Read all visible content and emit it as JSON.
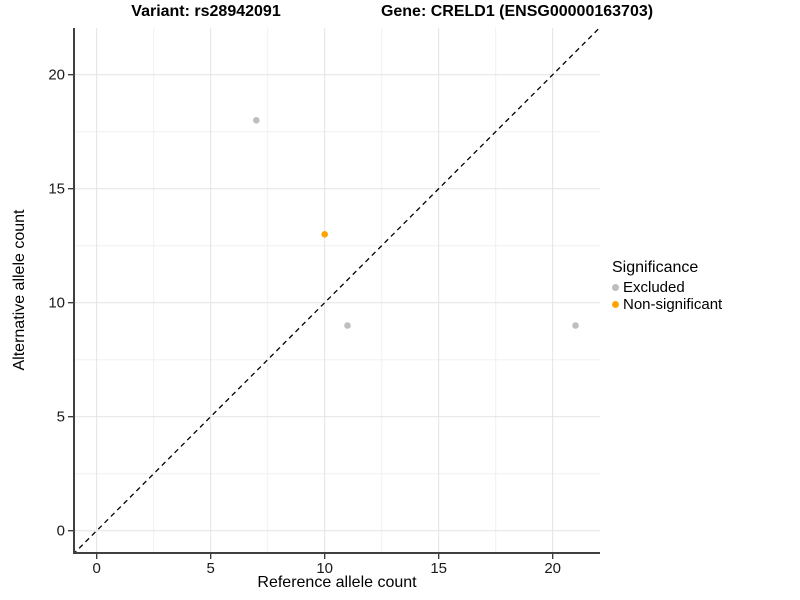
{
  "titles": {
    "variant": "Variant: rs28942091",
    "gene": "Gene: CRELD1 (ENSG00000163703)"
  },
  "chart_data": {
    "type": "scatter",
    "xlabel": "Reference allele count",
    "ylabel": "Alternative allele count",
    "xlim": [
      -1.05,
      22.05
    ],
    "ylim": [
      -1.05,
      22.05
    ],
    "x_ticks": [
      0,
      5,
      10,
      15,
      20
    ],
    "y_ticks": [
      0,
      5,
      10,
      15,
      20
    ],
    "minor_breaks": [
      2.5,
      7.5,
      12.5,
      17.5
    ],
    "grid": true,
    "series": [
      {
        "name": "Excluded",
        "color": "#BEBEBE",
        "points": [
          [
            7,
            18
          ],
          [
            11,
            9
          ],
          [
            21,
            9
          ]
        ]
      },
      {
        "name": "Non-significant",
        "color": "#FFA500",
        "points": [
          [
            10,
            13
          ]
        ]
      }
    ],
    "reference_line": {
      "type": "identity y=x",
      "style": "dashed",
      "color": "#000000"
    },
    "legend": {
      "title": "Significance",
      "position": "right"
    }
  },
  "colors": {
    "background": "#FFFFFF",
    "grid_major": "#E3E3E3",
    "grid_minor": "#F0F0F0",
    "axis_line": "#404040",
    "tick_text": "#1A1A1A",
    "excluded_point": "#BEBEBE",
    "non_significant_point": "#FFA500",
    "diagonal": "#000000"
  }
}
